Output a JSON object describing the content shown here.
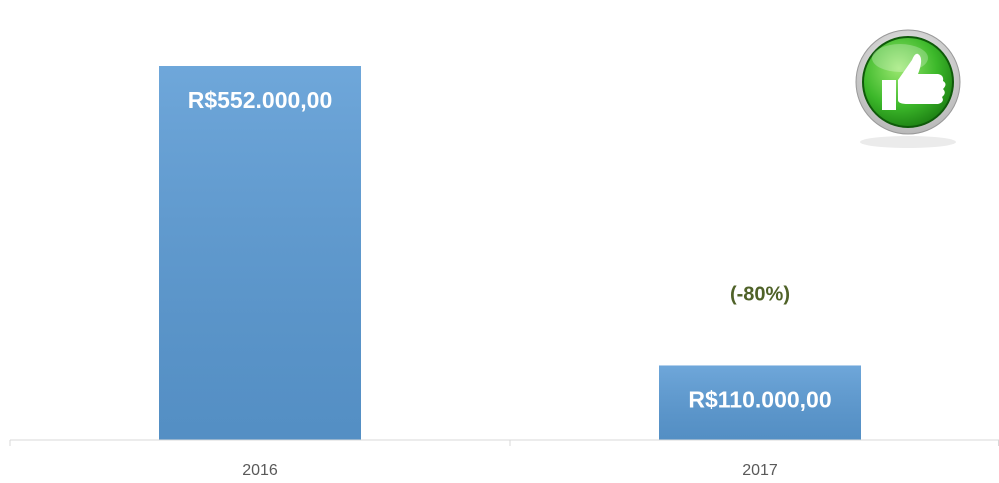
{
  "chart_data": {
    "type": "bar",
    "categories": [
      "2016",
      "2017"
    ],
    "values": [
      552000,
      110000
    ],
    "value_labels": [
      "R$552.000,00",
      "R$110.000,00"
    ],
    "color": "#5b9bd5",
    "annotation": "(-80%)"
  }
}
